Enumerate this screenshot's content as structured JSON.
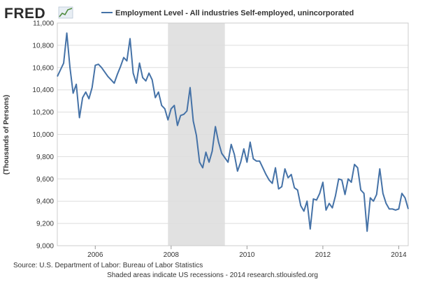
{
  "logo": {
    "text": "FRED",
    "icon": "fred-chart-logo-icon"
  },
  "colors": {
    "line": "#4572a7",
    "recession": "#e1e1e1",
    "grid": "#dddddd",
    "plot_border": "#cccccc"
  },
  "footer": {
    "source": "Source: U.S. Department of Labor: Bureau of Labor Statistics",
    "note": "Shaded areas indicate US recessions - 2014 research.stlouisfed.org"
  },
  "chart_data": {
    "type": "line",
    "title": "",
    "xlabel": "",
    "ylabel": "(Thousands of Persons)",
    "legend": {
      "position": "top",
      "entries": [
        "Employment Level - All industries Self-employed, unincorporated"
      ]
    },
    "grid": {
      "horizontal": true,
      "vertical": false
    },
    "xlim": [
      "2005-01",
      "2014-04"
    ],
    "ylim": [
      9000,
      11000
    ],
    "yticks": [
      9000,
      9200,
      9400,
      9600,
      9800,
      10000,
      10200,
      10400,
      10600,
      10800,
      11000
    ],
    "ytick_labels": [
      "9,000",
      "9,200",
      "9,400",
      "9,600",
      "9,800",
      "10,000",
      "10,200",
      "10,400",
      "10,600",
      "10,800",
      "11,000"
    ],
    "xticks": [
      "2006-01",
      "2008-01",
      "2010-01",
      "2012-01",
      "2014-01"
    ],
    "xtick_labels": [
      "2006",
      "2008",
      "2010",
      "2012",
      "2014"
    ],
    "recessions": [
      {
        "start": "2007-12",
        "end": "2009-06"
      }
    ],
    "series": [
      {
        "name": "Employment Level - All industries Self-employed, unincorporated",
        "x": [
          "2005-01",
          "2005-02",
          "2005-03",
          "2005-04",
          "2005-05",
          "2005-06",
          "2005-07",
          "2005-08",
          "2005-09",
          "2005-10",
          "2005-11",
          "2005-12",
          "2006-01",
          "2006-02",
          "2006-03",
          "2006-04",
          "2006-05",
          "2006-06",
          "2006-07",
          "2006-08",
          "2006-09",
          "2006-10",
          "2006-11",
          "2006-12",
          "2007-01",
          "2007-02",
          "2007-03",
          "2007-04",
          "2007-05",
          "2007-06",
          "2007-07",
          "2007-08",
          "2007-09",
          "2007-10",
          "2007-11",
          "2007-12",
          "2008-01",
          "2008-02",
          "2008-03",
          "2008-04",
          "2008-05",
          "2008-06",
          "2008-07",
          "2008-08",
          "2008-09",
          "2008-10",
          "2008-11",
          "2008-12",
          "2009-01",
          "2009-02",
          "2009-03",
          "2009-04",
          "2009-05",
          "2009-06",
          "2009-07",
          "2009-08",
          "2009-09",
          "2009-10",
          "2009-11",
          "2009-12",
          "2010-01",
          "2010-02",
          "2010-03",
          "2010-04",
          "2010-05",
          "2010-06",
          "2010-07",
          "2010-08",
          "2010-09",
          "2010-10",
          "2010-11",
          "2010-12",
          "2011-01",
          "2011-02",
          "2011-03",
          "2011-04",
          "2011-05",
          "2011-06",
          "2011-07",
          "2011-08",
          "2011-09",
          "2011-10",
          "2011-11",
          "2011-12",
          "2012-01",
          "2012-02",
          "2012-03",
          "2012-04",
          "2012-05",
          "2012-06",
          "2012-07",
          "2012-08",
          "2012-09",
          "2012-10",
          "2012-11",
          "2012-12",
          "2013-01",
          "2013-02",
          "2013-03",
          "2013-04",
          "2013-05",
          "2013-06",
          "2013-07",
          "2013-08",
          "2013-09",
          "2013-10",
          "2013-11",
          "2013-12",
          "2014-01",
          "2014-02",
          "2014-03",
          "2014-04"
        ],
        "values": [
          10520,
          10580,
          10640,
          10910,
          10600,
          10370,
          10450,
          10150,
          10330,
          10380,
          10320,
          10420,
          10620,
          10630,
          10600,
          10560,
          10520,
          10490,
          10460,
          10540,
          10610,
          10690,
          10660,
          10860,
          10550,
          10460,
          10640,
          10510,
          10480,
          10550,
          10490,
          10330,
          10380,
          10260,
          10230,
          10130,
          10230,
          10260,
          10080,
          10170,
          10180,
          10210,
          10420,
          10120,
          9990,
          9750,
          9700,
          9840,
          9750,
          9850,
          10070,
          9930,
          9830,
          9790,
          9750,
          9910,
          9820,
          9670,
          9750,
          9870,
          9750,
          9930,
          9780,
          9760,
          9760,
          9700,
          9640,
          9590,
          9560,
          9700,
          9510,
          9530,
          9690,
          9610,
          9640,
          9520,
          9500,
          9360,
          9310,
          9400,
          9150,
          9420,
          9410,
          9470,
          9570,
          9320,
          9380,
          9340,
          9450,
          9600,
          9590,
          9460,
          9600,
          9570,
          9730,
          9700,
          9500,
          9470,
          9130,
          9430,
          9400,
          9460,
          9690,
          9470,
          9380,
          9330,
          9330,
          9320,
          9330,
          9470,
          9430,
          9330
        ]
      }
    ]
  }
}
